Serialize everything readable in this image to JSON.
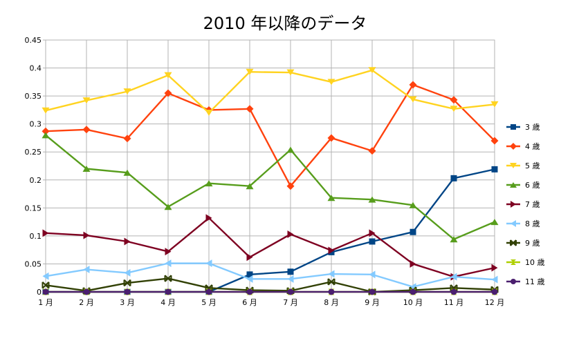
{
  "chart_data": {
    "type": "line",
    "title": "2010 年以降のデータ",
    "xlabel": "",
    "ylabel": "",
    "categories": [
      "1 月",
      "2 月",
      "3 月",
      "4 月",
      "5 月",
      "6 月",
      "7 月",
      "8 月",
      "9 月",
      "10 月",
      "11 月",
      "12 月"
    ],
    "ylim": [
      0,
      0.45
    ],
    "yticks": [
      "0",
      "0.05",
      "0.1",
      "0.15",
      "0.2",
      "0.25",
      "0.3",
      "0.35",
      "0.4",
      "0.45"
    ],
    "grid": true,
    "legend_position": "right",
    "series": [
      {
        "name": "3 歳",
        "color": "#004586",
        "marker": "square",
        "values": [
          0,
          0,
          0,
          0,
          0,
          0.031,
          0.036,
          0.071,
          0.09,
          0.107,
          0.203,
          0.219
        ]
      },
      {
        "name": "4 歳",
        "color": "#ff420e",
        "marker": "diamond",
        "values": [
          0.287,
          0.29,
          0.274,
          0.355,
          0.325,
          0.327,
          0.189,
          0.275,
          0.252,
          0.37,
          0.343,
          0.27
        ]
      },
      {
        "name": "5 歳",
        "color": "#ffd320",
        "marker": "triangle-down",
        "values": [
          0.324,
          0.342,
          0.358,
          0.387,
          0.32,
          0.393,
          0.392,
          0.375,
          0.396,
          0.344,
          0.327,
          0.335
        ]
      },
      {
        "name": "6 歳",
        "color": "#579d1c",
        "marker": "triangle-up",
        "values": [
          0.28,
          0.22,
          0.213,
          0.152,
          0.194,
          0.189,
          0.254,
          0.168,
          0.165,
          0.155,
          0.094,
          0.125
        ]
      },
      {
        "name": "7 歳",
        "color": "#7e0021",
        "marker": "triangle-right",
        "values": [
          0.105,
          0.101,
          0.09,
          0.072,
          0.132,
          0.062,
          0.103,
          0.074,
          0.105,
          0.05,
          0.027,
          0.043
        ]
      },
      {
        "name": "8 歳",
        "color": "#83caff",
        "marker": "triangle-left",
        "values": [
          0.028,
          0.04,
          0.034,
          0.051,
          0.051,
          0.023,
          0.023,
          0.032,
          0.031,
          0.009,
          0.027,
          0.022
        ]
      },
      {
        "name": "9 歳",
        "color": "#314004",
        "marker": "x",
        "values": [
          0.012,
          0.002,
          0.016,
          0.024,
          0.007,
          0.003,
          0.002,
          0.018,
          0,
          0.003,
          0.007,
          0.004
        ]
      },
      {
        "name": "10 歳",
        "color": "#aecf00",
        "marker": "hourglass",
        "values": [
          0,
          0,
          0,
          0,
          0,
          0,
          0,
          0,
          0,
          0,
          0,
          0
        ]
      },
      {
        "name": "11 歳",
        "color": "#4b1f6f",
        "marker": "circle",
        "values": [
          0,
          0,
          0,
          0,
          0,
          0,
          0,
          0,
          0,
          0,
          0,
          0
        ]
      }
    ]
  }
}
